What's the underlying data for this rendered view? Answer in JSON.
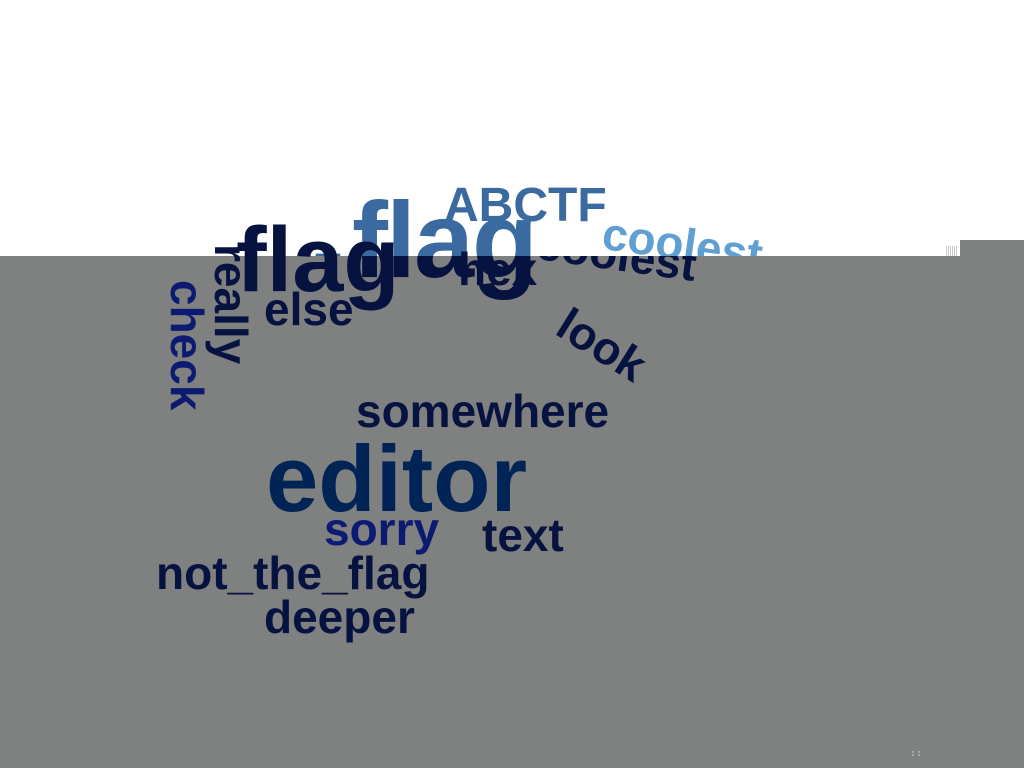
{
  "words": {
    "abctf": "ABCTF",
    "flag_top": "flag",
    "flag_left": "flag",
    "coolest_top": "coolest",
    "coolest_bottom": "coolest",
    "hex": "hex",
    "really": "really",
    "check": "check",
    "else": "else",
    "look": "look",
    "somewhere": "somewhere",
    "editor": "editor",
    "sorry": "sorry",
    "text": "text",
    "not_the_flag": "not_the_flag",
    "deeper": "deeper",
    "dash": "-"
  },
  "colors": {
    "white_bg": "#ffffff",
    "gray_bg": "#7f8080",
    "blue_mid": "#3a6aa0",
    "blue_light": "#5f9fd2",
    "navy": "#06123f",
    "navy_alt": "#0c1a72",
    "dark_blue": "#002456"
  }
}
